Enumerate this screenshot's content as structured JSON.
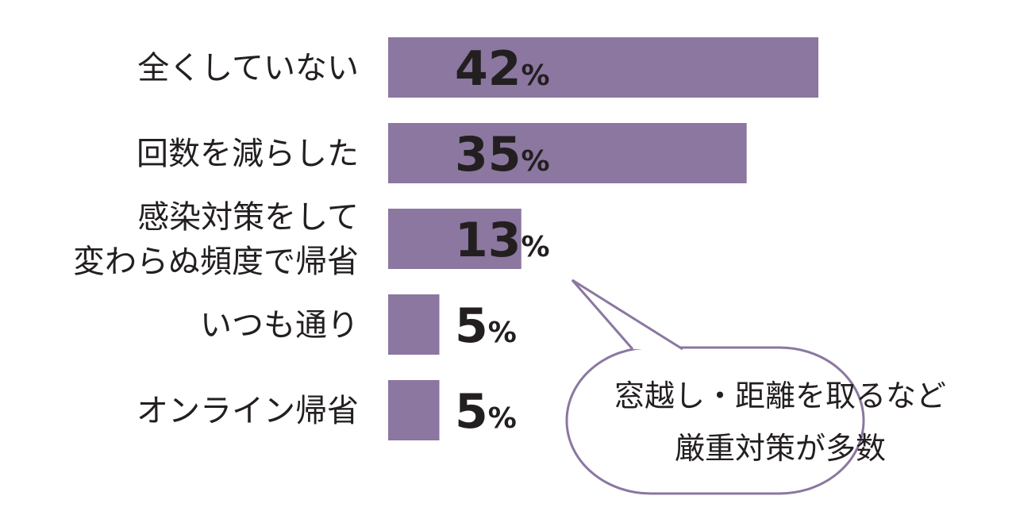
{
  "chart_data": {
    "type": "bar",
    "orientation": "horizontal",
    "categories": [
      [
        "全くしていない"
      ],
      [
        "回数を減らした"
      ],
      [
        "感染対策をして",
        "変わらぬ頻度で帰省"
      ],
      [
        "いつも通り"
      ],
      [
        "オンライン帰省"
      ]
    ],
    "values": [
      42,
      35,
      13,
      5,
      5
    ],
    "unit": "%",
    "xlim": [
      0,
      42
    ],
    "bar_color": "#8b77a0",
    "legend": "none",
    "grid": false
  },
  "callout": {
    "lines": [
      "窓越し・距離を取るなど",
      "厳重対策が多数"
    ],
    "border_color": "#8b77a0",
    "points_to": "感染対策をして変わらぬ頻度で帰省"
  }
}
